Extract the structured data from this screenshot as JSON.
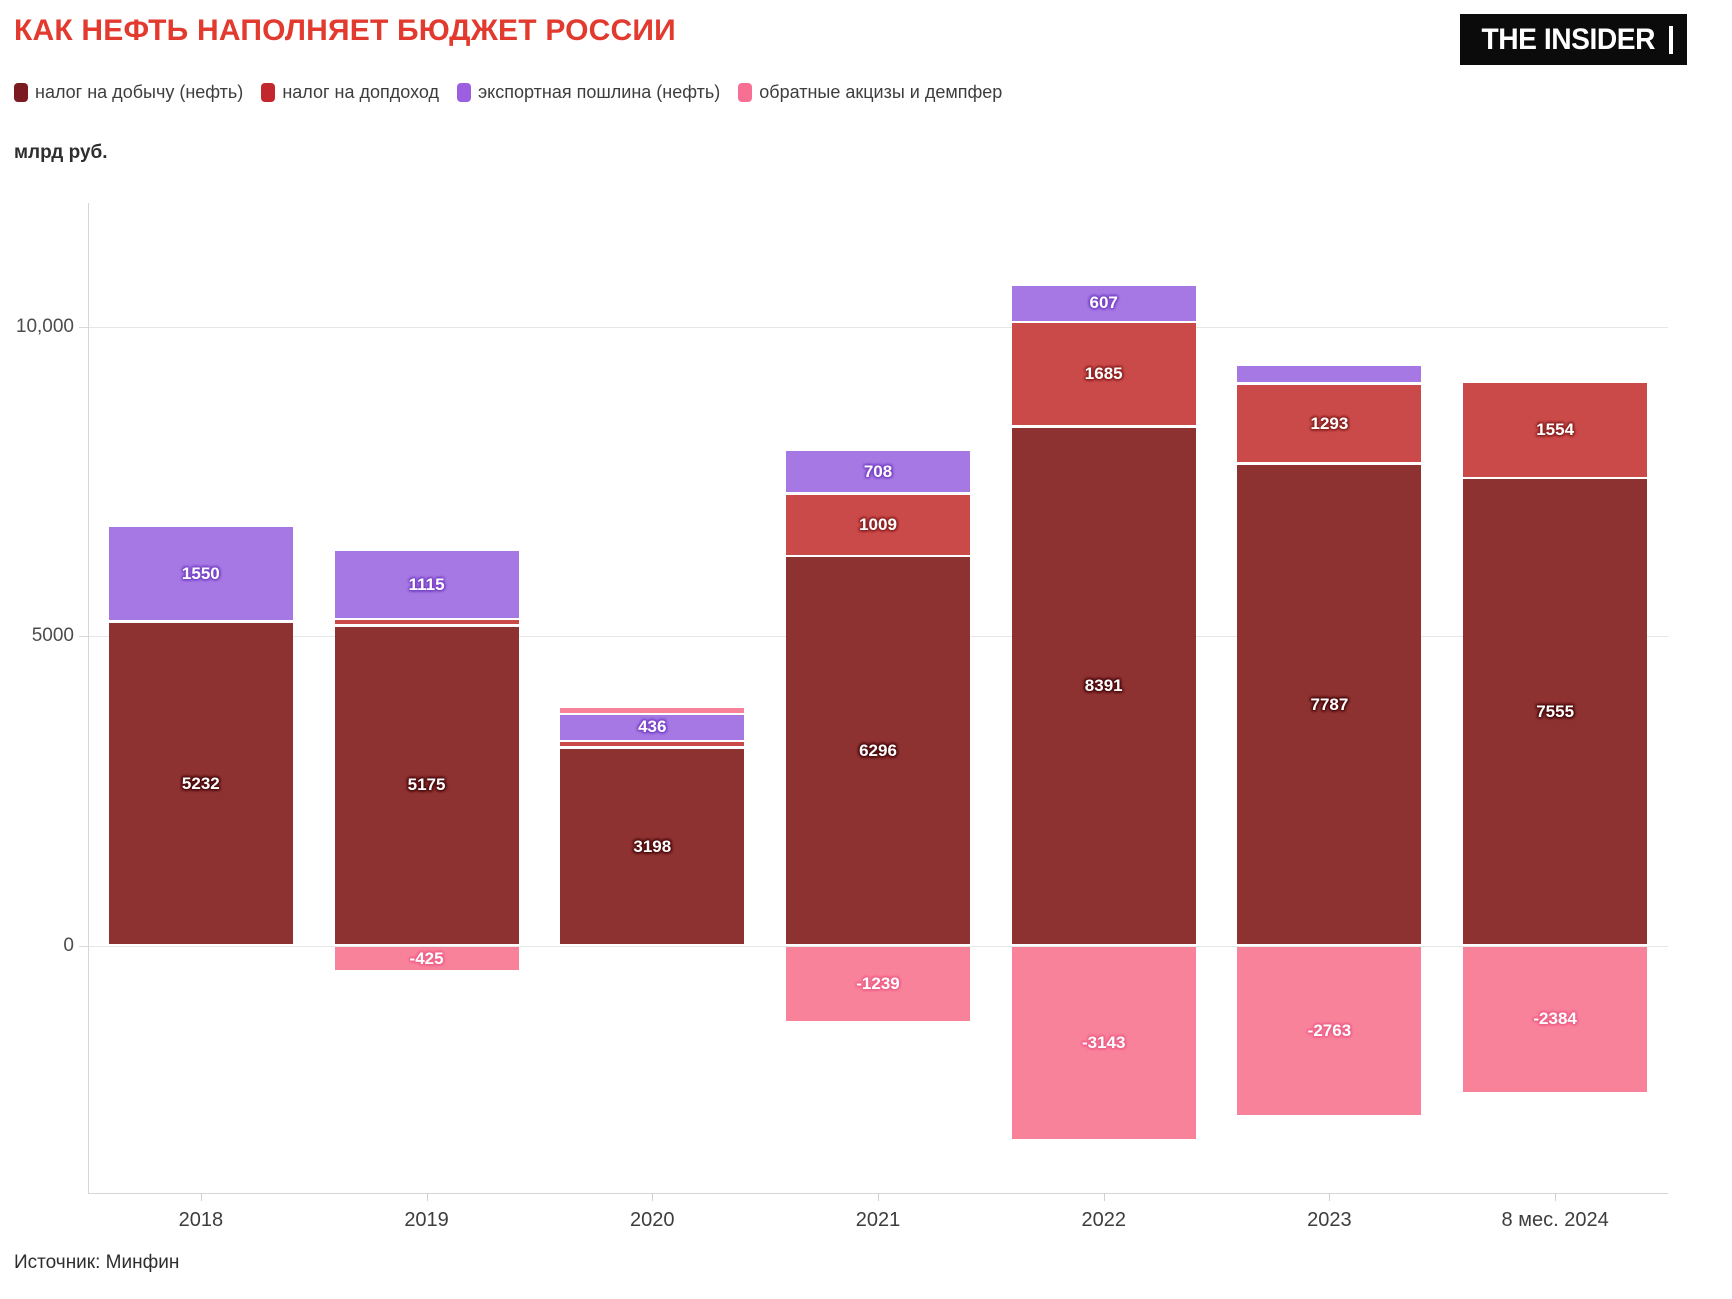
{
  "title": "КАК НЕФТЬ НАПОЛНЯЕТ БЮДЖЕТ РОССИИ",
  "logo_text": "THE INSIDER",
  "unit_label": "млрд руб.",
  "source": "Источник: Минфин",
  "legend": [
    {
      "key": "mining",
      "label": "налог на добычу (нефть)"
    },
    {
      "key": "add_income",
      "label": "налог на допдоход"
    },
    {
      "key": "export_duty",
      "label": "экспортная пошлина (нефть)"
    },
    {
      "key": "excise",
      "label": "обратные акцизы и демпфер"
    }
  ],
  "palette": {
    "mining": {
      "bar": "#8d3131",
      "legend": "#7b1b21",
      "halo": "#4f0e10"
    },
    "add_income": {
      "bar": "#ca4a4a",
      "legend": "#c1272d",
      "halo": "#8f2424"
    },
    "export_duty": {
      "bar": "#a678e3",
      "legend": "#9c5fe0",
      "halo": "#7b45c9"
    },
    "excise": {
      "bar": "#f9829b",
      "legend": "#f76f92",
      "halo": "#ef6289"
    }
  },
  "chart_data": {
    "type": "bar",
    "stacked": true,
    "title": "КАК НЕФТЬ НАПОЛНЯЕТ БЮДЖЕТ РОССИИ",
    "ylabel": "млрд руб.",
    "xlabel": "",
    "grid": true,
    "legend_position": "top",
    "ylim": [
      -4000,
      12000
    ],
    "yticks": [
      {
        "value": 0,
        "label": "0"
      },
      {
        "value": 5000,
        "label": "5000"
      },
      {
        "value": 10000,
        "label": "10,000"
      }
    ],
    "categories": [
      "2018",
      "2019",
      "2020",
      "2021",
      "2022",
      "2023",
      "8 мес. 2024"
    ],
    "series": [
      {
        "key": "mining",
        "name": "налог на добычу (нефть)",
        "values": [
          5232,
          5175,
          3198,
          6296,
          8391,
          7787,
          7555
        ],
        "labels": [
          "5232",
          "5175",
          "3198",
          "6296",
          "8391",
          "7787",
          "7555"
        ]
      },
      {
        "key": "add_income",
        "name": "налог на допдоход",
        "values": [
          0,
          100,
          110,
          1009,
          1685,
          1293,
          1554
        ],
        "labels": [
          "",
          "",
          "",
          "1009",
          "1685",
          "1293",
          "1554"
        ]
      },
      {
        "key": "export_duty",
        "name": "экспортная пошлина (нефть)",
        "values": [
          1550,
          1115,
          436,
          708,
          607,
          300,
          0
        ],
        "labels": [
          "1550",
          "1115",
          "436",
          "708",
          "607",
          "",
          ""
        ]
      },
      {
        "key": "excise",
        "name": "обратные акцизы и демпфер",
        "values": [
          0,
          -425,
          120,
          -1239,
          -3143,
          -2763,
          -2384
        ],
        "labels": [
          "",
          "-425",
          "",
          "-1239",
          "-3143",
          "-2763",
          "-2384"
        ]
      }
    ]
  }
}
